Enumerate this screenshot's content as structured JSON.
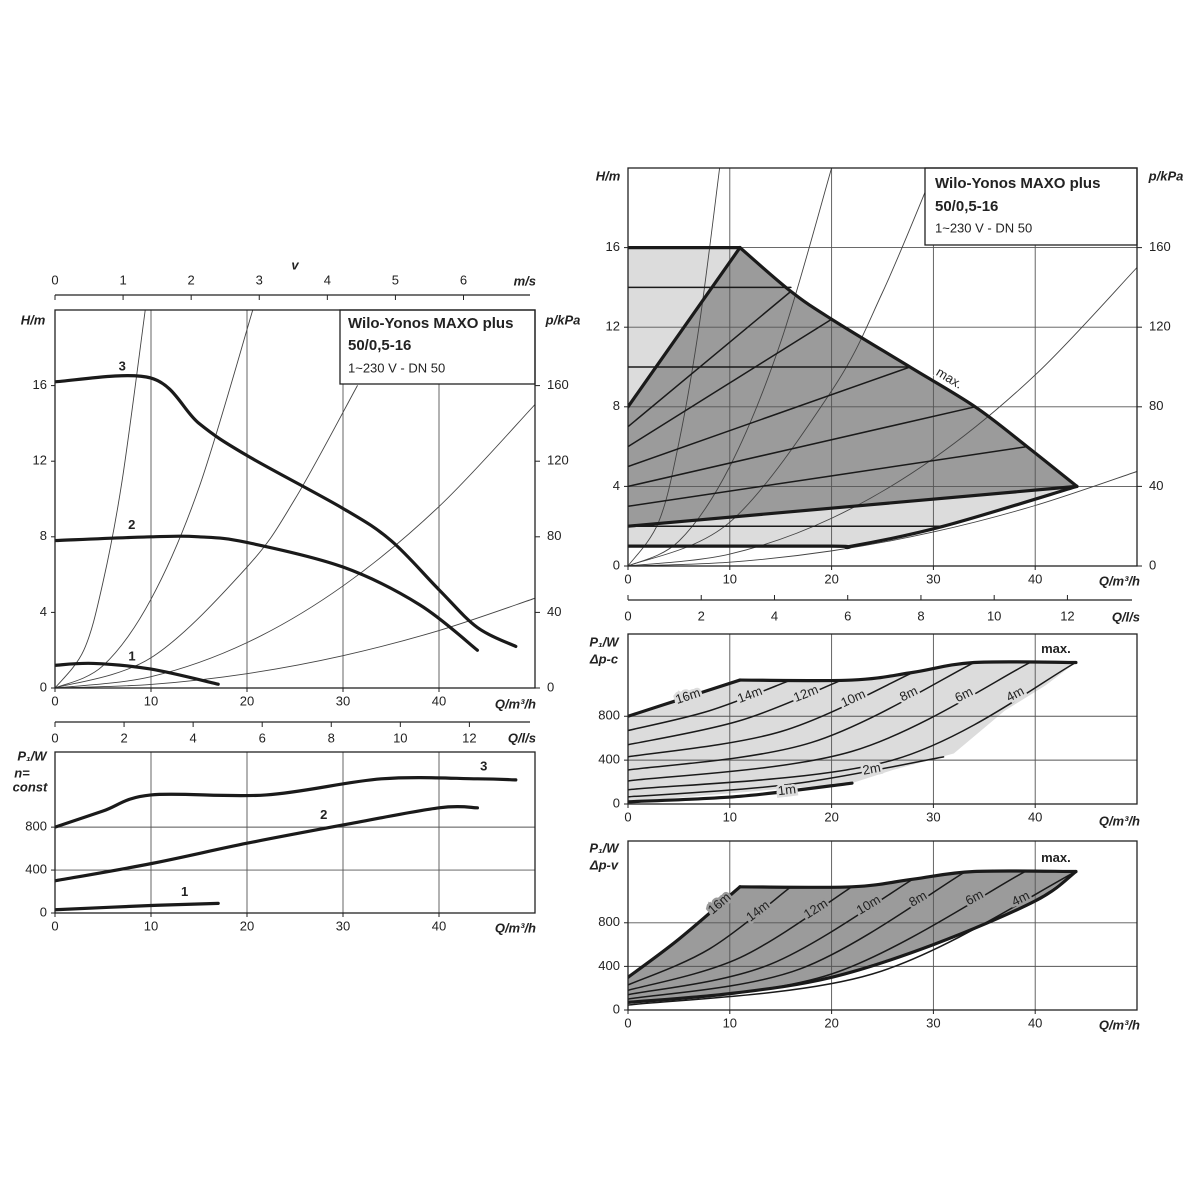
{
  "chart_data": [
    {
      "type": "line",
      "title": [
        "Wilo-Yonos MAXO plus",
        "50/0,5-16"
      ],
      "subtitle": "1~230 V - DN 50",
      "ylabel": "H/m",
      "y2label": "p/kPa",
      "xlabel": "Q/m³/h",
      "x2label": "m/s",
      "x2name": "v",
      "xlim": [
        0,
        50
      ],
      "xticks": [
        0,
        10,
        20,
        30,
        40
      ],
      "ylim": [
        0,
        20
      ],
      "yticks": [
        0,
        4,
        8,
        12,
        16
      ],
      "y2lim": [
        0,
        200
      ],
      "y2ticks": [
        0,
        40,
        80,
        120,
        160
      ],
      "x2lim": [
        0,
        7.05
      ],
      "x2ticks": [
        0,
        1,
        2,
        3,
        4,
        5,
        6
      ],
      "grid": "x",
      "series": [
        {
          "color": "#444444",
          "line": "thin",
          "x": [
            0,
            3,
            5,
            7,
            9.4
          ],
          "values": [
            0,
            2,
            5.6,
            11,
            20
          ]
        },
        {
          "color": "#444444",
          "line": "thin",
          "x": [
            0,
            5,
            10,
            15,
            20.6
          ],
          "values": [
            0,
            1.18,
            4.7,
            10.6,
            20
          ]
        },
        {
          "color": "#444444",
          "line": "thin",
          "x": [
            0,
            10,
            20,
            25,
            31.5
          ],
          "values": [
            0,
            1.6,
            6.4,
            10,
            16
          ]
        },
        {
          "color": "#444444",
          "line": "thin",
          "x": [
            0,
            10,
            20,
            30,
            40,
            50
          ],
          "values": [
            0,
            0.6,
            2.4,
            5.4,
            9.6,
            15
          ]
        },
        {
          "color": "#444444",
          "line": "thin",
          "x": [
            0,
            10,
            20,
            30,
            40,
            50
          ],
          "values": [
            0,
            0.19,
            0.76,
            1.71,
            3.04,
            4.75
          ]
        },
        {
          "name": "3",
          "color": "#1a1a1a",
          "line": "heavy",
          "x": [
            0,
            10,
            15,
            20,
            30,
            35,
            40,
            44,
            48
          ],
          "values": [
            16.2,
            16.4,
            14,
            12.3,
            9.5,
            7.8,
            5.2,
            3.2,
            2.2
          ]
        },
        {
          "name": "2",
          "color": "#1a1a1a",
          "line": "heavy",
          "x": [
            0,
            10,
            15,
            20,
            30,
            38,
            44
          ],
          "values": [
            7.8,
            8,
            8,
            7.7,
            6.4,
            4.4,
            2.0
          ]
        },
        {
          "name": "1",
          "color": "#1a1a1a",
          "line": "heavy",
          "x": [
            0,
            4,
            10,
            17
          ],
          "values": [
            1.2,
            1.3,
            1.0,
            0.2
          ]
        }
      ]
    },
    {
      "type": "line",
      "ylabel": "P₁/W",
      "notes": [
        "n=",
        "const"
      ],
      "xlabel": "Q/m³/h",
      "x2label": "Q/l/s",
      "xlim": [
        0,
        50
      ],
      "xticks": [
        0,
        10,
        20,
        30,
        40
      ],
      "ylim": [
        0,
        1500
      ],
      "yticks": [
        0,
        400,
        800
      ],
      "x2lim": [
        0,
        13.9
      ],
      "x2ticks": [
        0,
        2,
        4,
        6,
        8,
        10,
        12
      ],
      "grid": "both",
      "series": [
        {
          "name": "3",
          "color": "#1a1a1a",
          "line": "heavy",
          "x": [
            0,
            5,
            10,
            22,
            34,
            44,
            48
          ],
          "values": [
            800,
            950,
            1100,
            1100,
            1250,
            1250,
            1240
          ]
        },
        {
          "name": "2",
          "color": "#1a1a1a",
          "line": "heavy",
          "x": [
            0,
            10,
            20,
            30,
            40,
            44
          ],
          "values": [
            300,
            460,
            650,
            820,
            980,
            980
          ]
        },
        {
          "name": "1",
          "color": "#1a1a1a",
          "line": "heavy",
          "x": [
            0,
            10,
            17
          ],
          "values": [
            30,
            70,
            90
          ]
        }
      ]
    },
    {
      "type": "line",
      "title": [
        "Wilo-Yonos MAXO plus",
        "50/0,5-16"
      ],
      "subtitle": "1~230 V - DN 50",
      "ylabel": "H/m",
      "y2label": "p/kPa",
      "xlabel": "Q/m³/h",
      "x2label": "Q/l/s",
      "xlim": [
        0,
        50
      ],
      "xticks": [
        0,
        10,
        20,
        30,
        40
      ],
      "ylim": [
        0,
        20
      ],
      "yticks": [
        0,
        4,
        8,
        12,
        16
      ],
      "y2lim": [
        0,
        200
      ],
      "y2ticks": [
        0,
        40,
        80,
        120,
        160
      ],
      "x2lim": [
        0,
        13.9
      ],
      "x2ticks": [
        0,
        2,
        4,
        6,
        8,
        10,
        12
      ],
      "grid": "both",
      "series": [
        {
          "fill": "#dcdcdc",
          "x": [
            0,
            0,
            11,
            16,
            20,
            27.7,
            34.1,
            39.2,
            44.1,
            31,
            22
          ],
          "values": [
            1,
            16,
            16,
            13.8,
            12.4,
            10,
            8,
            6,
            4,
            2,
            1
          ]
        },
        {
          "fill": "#9b9b9b",
          "x": [
            0,
            11,
            16,
            20,
            27.7,
            34.1,
            39.2,
            44.1,
            0
          ],
          "values": [
            8,
            16,
            13.8,
            12.4,
            10,
            8,
            6,
            4,
            2
          ]
        },
        {
          "color": "#444444",
          "line": "thin",
          "x": [
            0,
            3,
            5,
            7,
            9
          ],
          "values": [
            0,
            2.2,
            6.2,
            12.1,
            20
          ]
        },
        {
          "color": "#444444",
          "line": "thin",
          "x": [
            0,
            5,
            10,
            15,
            20
          ],
          "values": [
            0,
            1.25,
            5,
            11.25,
            20
          ]
        },
        {
          "color": "#444444",
          "line": "thin",
          "x": [
            0,
            10,
            20,
            25,
            30
          ],
          "values": [
            0,
            2.2,
            8.8,
            13.75,
            19.8
          ]
        },
        {
          "color": "#444444",
          "line": "thin",
          "x": [
            0,
            10,
            20,
            30,
            40,
            50
          ],
          "values": [
            0,
            0.6,
            2.4,
            5.4,
            9.6,
            15
          ]
        },
        {
          "color": "#444444",
          "line": "thin",
          "x": [
            0,
            10,
            20,
            30,
            40,
            50
          ],
          "values": [
            0,
            0.19,
            0.76,
            1.71,
            3.04,
            4.75
          ]
        },
        {
          "color": "#1a1a1a",
          "line": "medium",
          "x": [
            0,
            16
          ],
          "values": [
            14,
            14
          ]
        },
        {
          "color": "#1a1a1a",
          "line": "medium",
          "x": [
            0,
            27.7
          ],
          "values": [
            10,
            10
          ]
        },
        {
          "color": "#1a1a1a",
          "line": "medium",
          "x": [
            0,
            31
          ],
          "values": [
            2,
            2
          ]
        },
        {
          "color": "#1a1a1a",
          "line": "medium",
          "x": [
            0,
            16
          ],
          "values": [
            7,
            13.8
          ]
        },
        {
          "color": "#1a1a1a",
          "line": "medium",
          "x": [
            0,
            20
          ],
          "values": [
            6,
            12.4
          ]
        },
        {
          "color": "#1a1a1a",
          "line": "medium",
          "x": [
            0,
            27.7
          ],
          "values": [
            5,
            10
          ]
        },
        {
          "color": "#1a1a1a",
          "line": "medium",
          "x": [
            0,
            34.1
          ],
          "values": [
            4,
            8
          ]
        },
        {
          "color": "#1a1a1a",
          "line": "medium",
          "x": [
            0,
            39.2
          ],
          "values": [
            3,
            6
          ]
        },
        {
          "color": "#1a1a1a",
          "line": "heavy",
          "x": [
            0,
            11
          ],
          "values": [
            8,
            16
          ]
        },
        {
          "color": "#1a1a1a",
          "line": "heavy",
          "x": [
            0,
            11
          ],
          "values": [
            16,
            16
          ]
        },
        {
          "color": "#1a1a1a",
          "line": "heavy",
          "x": [
            0,
            44.1
          ],
          "values": [
            2,
            4
          ]
        },
        {
          "color": "#1a1a1a",
          "line": "heavy",
          "x": [
            0,
            20,
            22,
            31,
            44.1
          ],
          "values": [
            1,
            1,
            1,
            2,
            4
          ]
        },
        {
          "name": "max.",
          "color": "#1a1a1a",
          "line": "heavy",
          "x": [
            11,
            16,
            20,
            27.7,
            34.1,
            39.2,
            44.1
          ],
          "values": [
            16,
            13.8,
            12.4,
            10,
            8,
            6,
            4
          ]
        }
      ]
    },
    {
      "type": "line",
      "ylabel": "P₁/W",
      "notes": [
        "Δp-c"
      ],
      "xlabel": "Q/m³/h",
      "xlim": [
        0,
        50
      ],
      "xticks": [
        0,
        10,
        20,
        30,
        40
      ],
      "ylim": [
        0,
        1550
      ],
      "yticks": [
        0,
        400,
        800
      ],
      "grid": "both",
      "series": [
        {
          "fill": "#dcdcdc",
          "x": [
            0,
            11,
            22,
            28,
            34,
            44,
            41,
            37,
            32,
            26,
            22,
            0
          ],
          "values": [
            800,
            1130,
            1130,
            1200,
            1290,
            1290,
            1080,
            850,
            460,
            310,
            190,
            20
          ]
        },
        {
          "name": "16m",
          "color": "#1a1a1a",
          "line": "heavy",
          "x": [
            0,
            5,
            11
          ],
          "values": [
            800,
            950,
            1130
          ]
        },
        {
          "name": "14m",
          "color": "#1a1a1a",
          "line": "medium",
          "x": [
            0,
            8,
            16
          ],
          "values": [
            670,
            850,
            1130
          ]
        },
        {
          "name": "12m",
          "color": "#1a1a1a",
          "line": "medium",
          "x": [
            0,
            11,
            21
          ],
          "values": [
            540,
            760,
            1130
          ]
        },
        {
          "name": "10m",
          "color": "#1a1a1a",
          "line": "medium",
          "x": [
            0,
            15,
            28
          ],
          "values": [
            430,
            660,
            1200
          ]
        },
        {
          "name": "8m",
          "color": "#1a1a1a",
          "line": "medium",
          "x": [
            0,
            18,
            34
          ],
          "values": [
            310,
            560,
            1290
          ]
        },
        {
          "name": "6m",
          "color": "#1a1a1a",
          "line": "medium",
          "x": [
            0,
            22,
            39.5
          ],
          "values": [
            210,
            480,
            1290
          ]
        },
        {
          "name": "4m",
          "color": "#1a1a1a",
          "line": "medium",
          "x": [
            0,
            26,
            44
          ],
          "values": [
            130,
            400,
            1290
          ]
        },
        {
          "name": "2m",
          "color": "#1a1a1a",
          "line": "medium",
          "x": [
            0,
            16,
            31
          ],
          "values": [
            65,
            180,
            430
          ]
        },
        {
          "name": "1m",
          "color": "#1a1a1a",
          "line": "heavy",
          "x": [
            0,
            11,
            22
          ],
          "values": [
            20,
            70,
            190
          ]
        },
        {
          "name": "max.",
          "color": "#1a1a1a",
          "line": "heavy",
          "x": [
            11,
            22,
            28,
            34,
            44
          ],
          "values": [
            1130,
            1130,
            1200,
            1290,
            1290
          ]
        }
      ]
    },
    {
      "type": "line",
      "ylabel": "P₁/W",
      "notes": [
        "Δp-v"
      ],
      "xlabel": "Q/m³/h",
      "xlim": [
        0,
        50
      ],
      "xticks": [
        0,
        10,
        20,
        30,
        40
      ],
      "ylim": [
        0,
        1550
      ],
      "yticks": [
        0,
        400,
        800
      ],
      "grid": "both",
      "series": [
        {
          "fill": "#9b9b9b",
          "x": [
            0,
            5,
            11,
            22,
            28,
            34,
            44,
            40,
            30,
            20,
            10,
            0
          ],
          "values": [
            300,
            650,
            1130,
            1130,
            1200,
            1270,
            1270,
            1000,
            600,
            300,
            150,
            70
          ]
        },
        {
          "name": "16m",
          "color": "#1a1a1a",
          "line": "heavy",
          "x": [
            0,
            5,
            11
          ],
          "values": [
            300,
            650,
            1130
          ]
        },
        {
          "name": "14m",
          "color": "#1a1a1a",
          "line": "medium",
          "x": [
            0,
            8,
            16
          ],
          "values": [
            230,
            560,
            1130
          ]
        },
        {
          "name": "12m",
          "color": "#1a1a1a",
          "line": "medium",
          "x": [
            0,
            11,
            22
          ],
          "values": [
            180,
            480,
            1130
          ]
        },
        {
          "name": "10m",
          "color": "#1a1a1a",
          "line": "medium",
          "x": [
            0,
            14,
            28
          ],
          "values": [
            140,
            420,
            1200
          ]
        },
        {
          "name": "8m",
          "color": "#1a1a1a",
          "line": "medium",
          "x": [
            0,
            17,
            33
          ],
          "values": [
            100,
            380,
            1260
          ]
        },
        {
          "name": "6m",
          "color": "#1a1a1a",
          "line": "medium",
          "x": [
            0,
            20,
            39
          ],
          "values": [
            65,
            330,
            1270
          ]
        },
        {
          "name": "4m",
          "color": "#1a1a1a",
          "line": "medium",
          "x": [
            0,
            24,
            44
          ],
          "values": [
            45,
            330,
            1270
          ]
        },
        {
          "color": "#1a1a1a",
          "line": "heavy",
          "x": [
            0,
            10,
            20,
            30,
            40,
            44
          ],
          "values": [
            70,
            150,
            300,
            600,
            1000,
            1270
          ]
        },
        {
          "name": "max.",
          "color": "#1a1a1a",
          "line": "heavy",
          "x": [
            11,
            22,
            28,
            34,
            44
          ],
          "values": [
            1130,
            1130,
            1200,
            1270,
            1270
          ]
        }
      ]
    }
  ]
}
